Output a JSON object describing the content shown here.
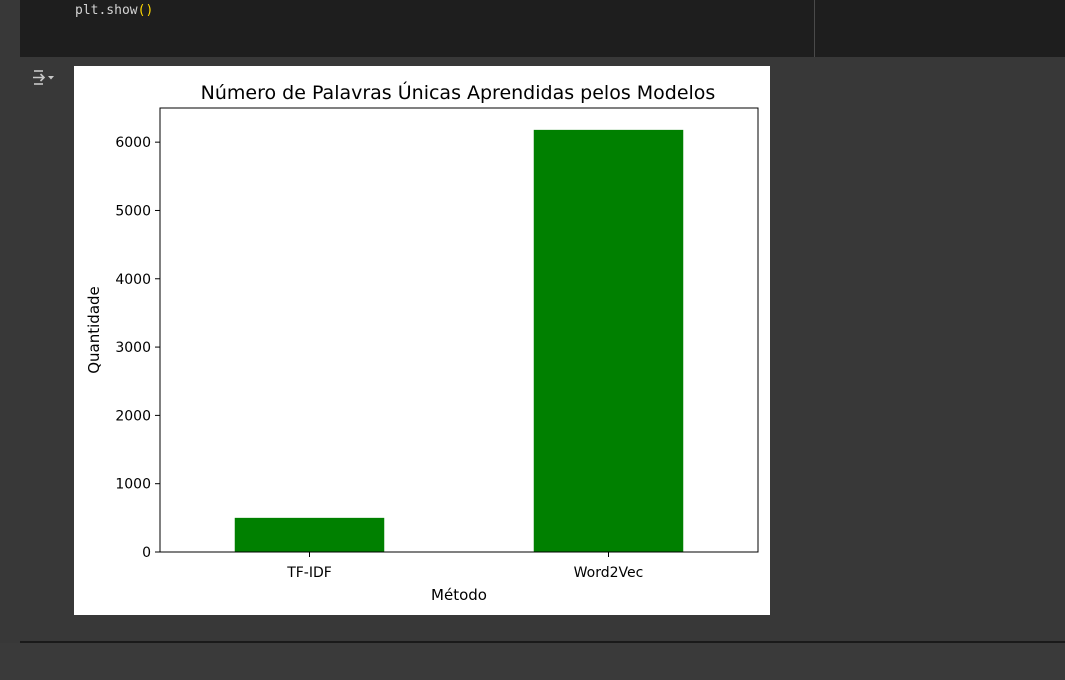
{
  "code": {
    "line_fn": "plt.show",
    "line_parens": "()"
  },
  "output": {
    "toggle_icon": "output-collapse-icon"
  },
  "chart_data": {
    "type": "bar",
    "title": "Número de Palavras Únicas Aprendidas pelos Modelos",
    "xlabel": "Método",
    "ylabel": "Quantidade",
    "categories": [
      "TF-IDF",
      "Word2Vec"
    ],
    "values": [
      500,
      6180
    ],
    "ylim": [
      0,
      6500
    ],
    "yticks": [
      0,
      1000,
      2000,
      3000,
      4000,
      5000,
      6000
    ],
    "bar_color": "#008000",
    "grid": false,
    "legend": "none"
  }
}
